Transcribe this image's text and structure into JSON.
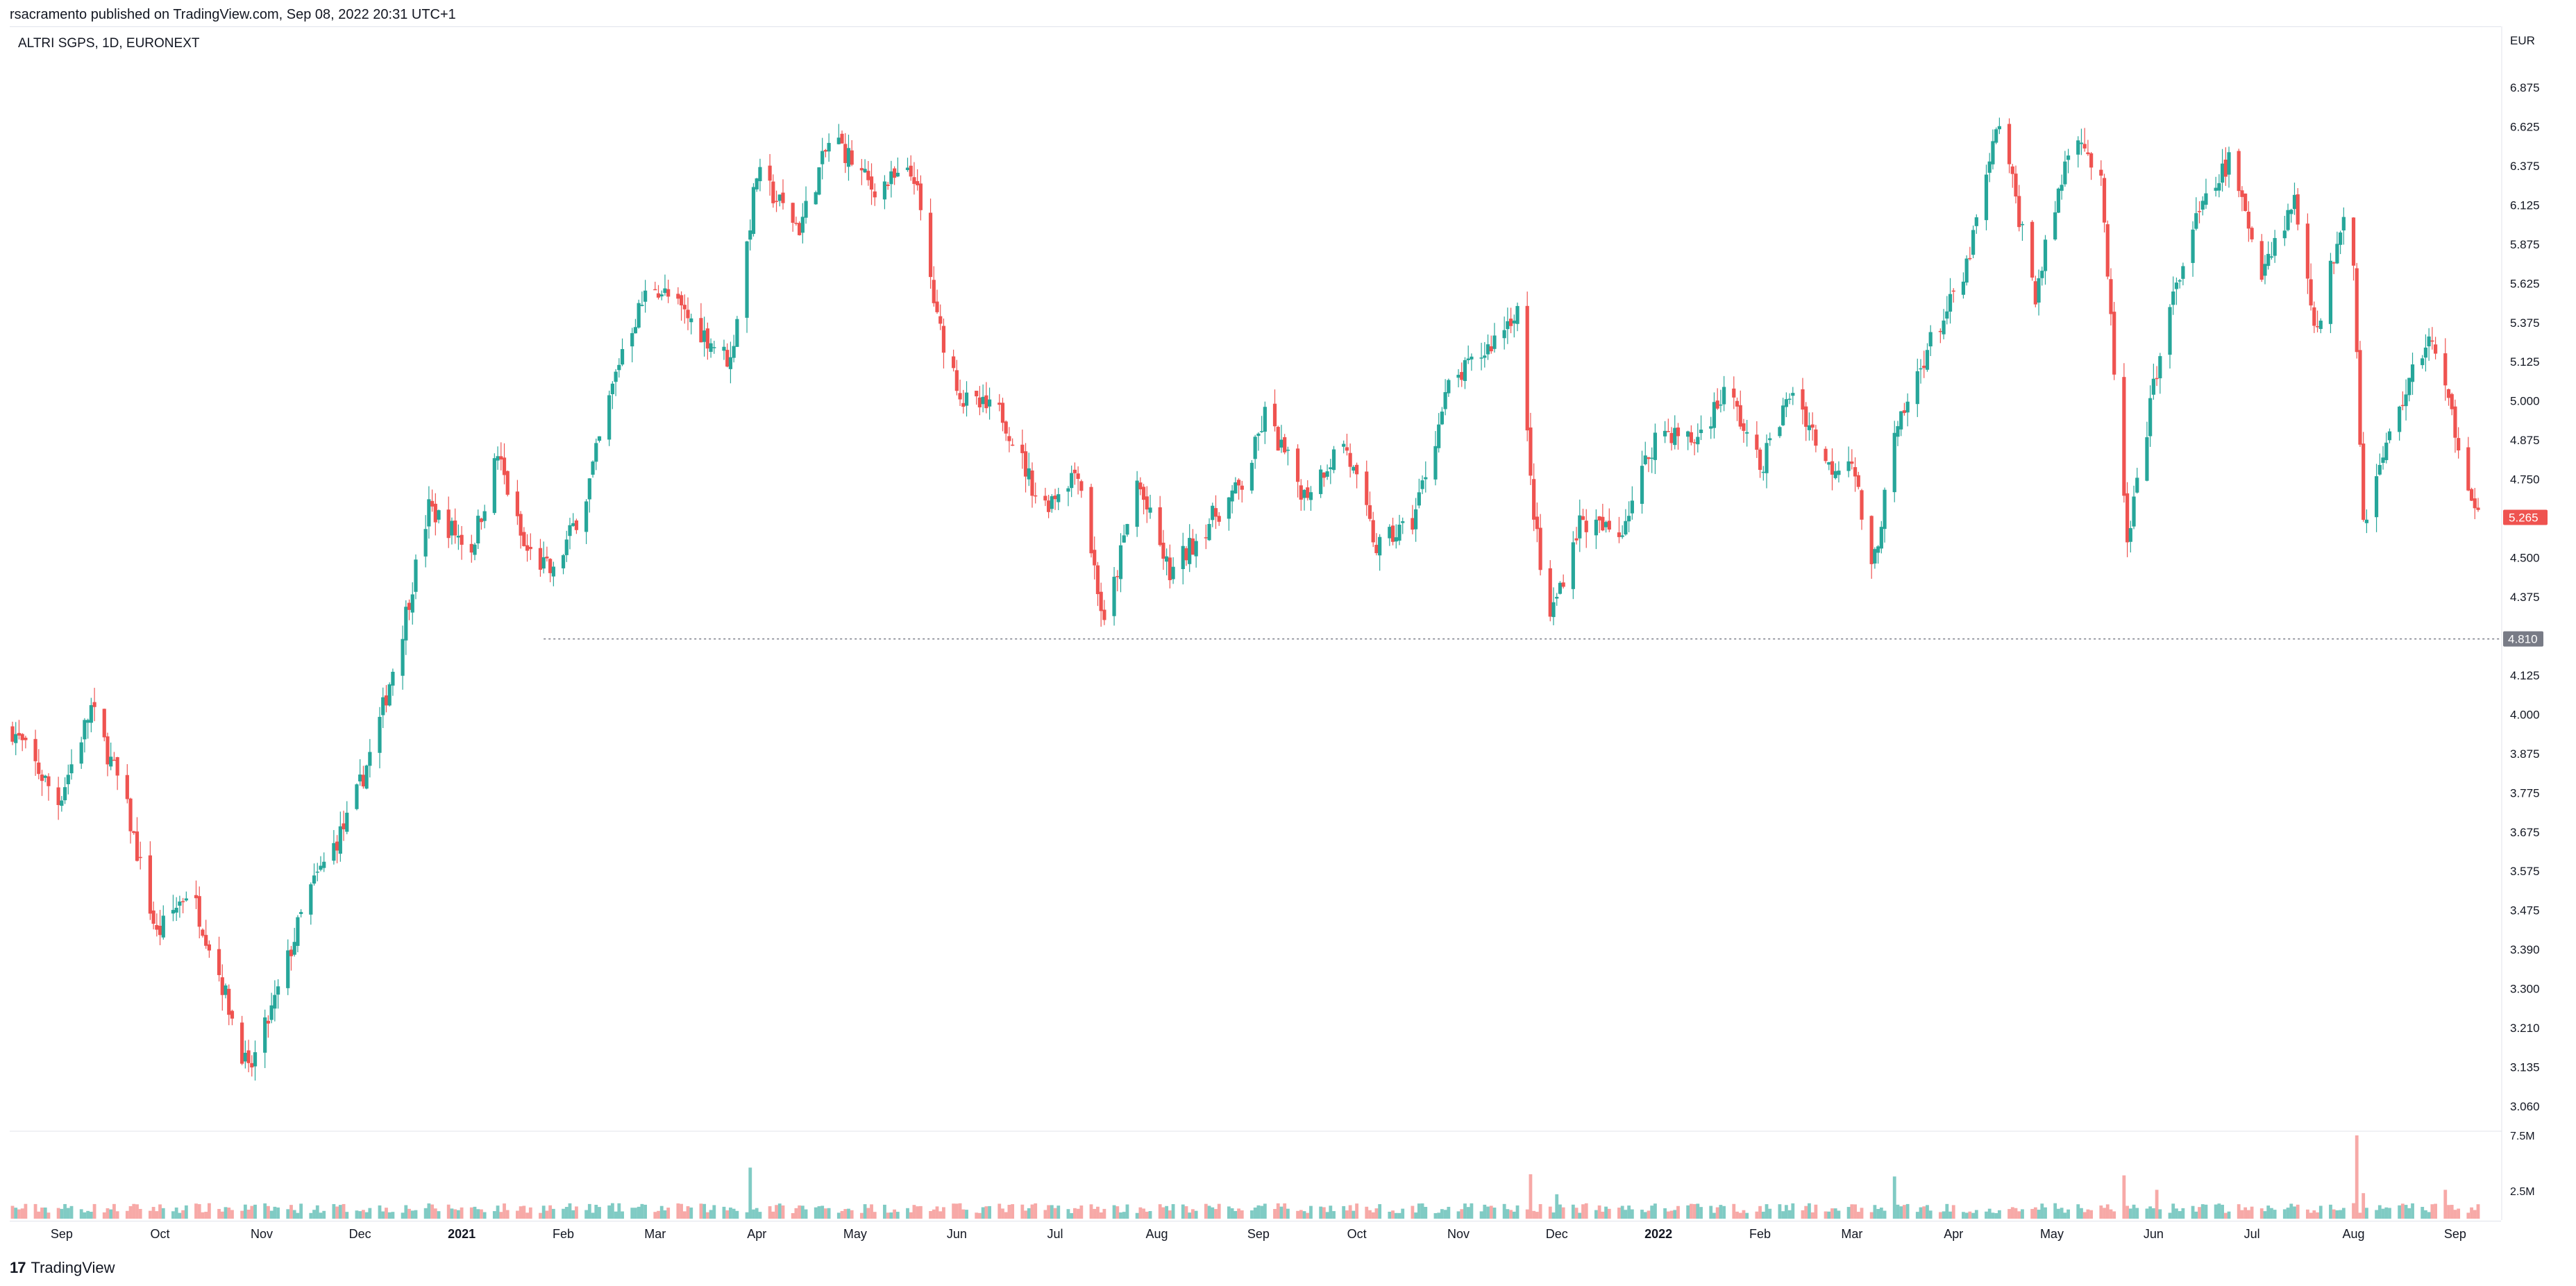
{
  "header": {
    "published": "rsacramento published on TradingView.com, Sep 08, 2022 20:31 UTC+1"
  },
  "legend": {
    "symbol": "ALTRI SGPS, 1D, EURONEXT"
  },
  "footer": {
    "brand": "TradingView",
    "logo": "17"
  },
  "colors": {
    "up": "#26a69a",
    "down": "#ef5350",
    "up_vol": "#80cbc4",
    "down_vol": "#f7a9a7",
    "support": "#787b86",
    "last_price": "#ef5350",
    "support_label": "#787b86"
  },
  "chart_data": {
    "type": "candlestick",
    "currency": "EUR",
    "y_ticks": [
      "6.875",
      "6.625",
      "6.375",
      "6.125",
      "5.875",
      "5.625",
      "5.375",
      "5.125",
      "5.000",
      "4.875",
      "4.750",
      "4.625",
      "4.500",
      "4.375",
      "4.250",
      "4.125",
      "4.000",
      "3.875",
      "3.775",
      "3.675",
      "3.575",
      "3.475",
      "3.390",
      "3.300",
      "3.210",
      "3.135",
      "3.060"
    ],
    "x_ticks": [
      "Sep",
      "Oct",
      "Nov",
      "Dec",
      "2021",
      "Feb",
      "Mar",
      "Apr",
      "May",
      "Jun",
      "Jul",
      "Aug",
      "Sep",
      "Oct",
      "Nov",
      "Dec",
      "2022",
      "Feb",
      "Mar",
      "Apr",
      "May",
      "Jun",
      "Jul",
      "Aug",
      "Sep"
    ],
    "bold_x_ticks": [
      "2021",
      "2022"
    ],
    "last_price": "5.265",
    "support_level": "4.810",
    "volume_ticks": [
      "7.5M",
      "2.5M"
    ],
    "volume_max": 7.5,
    "price_path": [
      [
        "2020-08-17",
        4.47
      ],
      [
        "2020-08-31",
        4.2
      ],
      [
        "2020-09-10",
        4.55
      ],
      [
        "2020-09-20",
        4.22
      ],
      [
        "2020-09-30",
        3.7
      ],
      [
        "2020-10-10",
        3.88
      ],
      [
        "2020-10-18",
        3.6
      ],
      [
        "2020-10-28",
        3.18
      ],
      [
        "2020-11-05",
        3.45
      ],
      [
        "2020-11-15",
        3.85
      ],
      [
        "2020-11-28",
        4.15
      ],
      [
        "2020-12-06",
        4.45
      ],
      [
        "2020-12-14",
        4.85
      ],
      [
        "2020-12-22",
        5.3
      ],
      [
        "2021-01-04",
        5.15
      ],
      [
        "2021-01-12",
        5.5
      ],
      [
        "2021-01-20",
        5.15
      ],
      [
        "2021-01-29",
        5.05
      ],
      [
        "2021-02-08",
        5.35
      ],
      [
        "2021-02-19",
        5.9
      ],
      [
        "2021-02-28",
        6.15
      ],
      [
        "2021-03-12",
        6.0
      ],
      [
        "2021-03-24",
        5.85
      ],
      [
        "2021-04-01",
        6.55
      ],
      [
        "2021-04-14",
        6.35
      ],
      [
        "2021-04-24",
        6.7
      ],
      [
        "2021-05-06",
        6.5
      ],
      [
        "2021-05-19",
        6.55
      ],
      [
        "2021-05-26",
        6.0
      ],
      [
        "2021-06-03",
        5.7
      ],
      [
        "2021-06-15",
        5.65
      ],
      [
        "2021-06-27",
        5.3
      ],
      [
        "2021-07-08",
        5.45
      ],
      [
        "2021-07-16",
        4.85
      ],
      [
        "2021-07-26",
        5.4
      ],
      [
        "2021-08-05",
        5.05
      ],
      [
        "2021-08-17",
        5.25
      ],
      [
        "2021-08-28",
        5.4
      ],
      [
        "2021-09-03",
        5.65
      ],
      [
        "2021-09-15",
        5.35
      ],
      [
        "2021-09-27",
        5.55
      ],
      [
        "2021-10-07",
        5.15
      ],
      [
        "2021-10-18",
        5.25
      ],
      [
        "2021-10-29",
        5.75
      ],
      [
        "2021-11-10",
        5.9
      ],
      [
        "2021-11-19",
        6.05
      ],
      [
        "2021-11-23",
        5.4
      ],
      [
        "2021-11-28",
        4.85
      ],
      [
        "2021-12-08",
        5.25
      ],
      [
        "2021-12-20",
        5.2
      ],
      [
        "2022-01-01",
        5.6
      ],
      [
        "2022-01-12",
        5.55
      ],
      [
        "2022-01-22",
        5.75
      ],
      [
        "2022-02-01",
        5.45
      ],
      [
        "2022-02-11",
        5.75
      ],
      [
        "2022-02-22",
        5.45
      ],
      [
        "2022-03-01",
        5.5
      ],
      [
        "2022-03-07",
        5.05
      ],
      [
        "2022-03-14",
        5.55
      ],
      [
        "2022-03-24",
        5.9
      ],
      [
        "2022-04-04",
        6.15
      ],
      [
        "2022-04-15",
        6.75
      ],
      [
        "2022-04-26",
        6.1
      ],
      [
        "2022-05-08",
        6.75
      ],
      [
        "2022-05-16",
        6.5
      ],
      [
        "2022-05-24",
        5.15
      ],
      [
        "2022-06-03",
        5.9
      ],
      [
        "2022-06-13",
        6.35
      ],
      [
        "2022-06-24",
        6.6
      ],
      [
        "2022-07-04",
        6.2
      ],
      [
        "2022-07-14",
        6.45
      ],
      [
        "2022-07-21",
        5.95
      ],
      [
        "2022-07-31",
        6.55
      ],
      [
        "2022-08-04",
        5.25
      ],
      [
        "2022-08-14",
        5.65
      ],
      [
        "2022-08-24",
        5.95
      ],
      [
        "2022-09-01",
        5.6
      ],
      [
        "2022-09-08",
        5.265
      ]
    ],
    "volume_spikes": [
      [
        "2021-02-20",
        4.0
      ],
      [
        "2021-03-30",
        4.6
      ],
      [
        "2021-11-23",
        4.0
      ],
      [
        "2021-12-01",
        2.2
      ],
      [
        "2022-03-14",
        3.8
      ],
      [
        "2022-05-23",
        3.9
      ],
      [
        "2022-06-02",
        2.6
      ],
      [
        "2022-08-02",
        7.5
      ],
      [
        "2022-08-04",
        2.3
      ],
      [
        "2022-08-29",
        2.6
      ]
    ]
  }
}
